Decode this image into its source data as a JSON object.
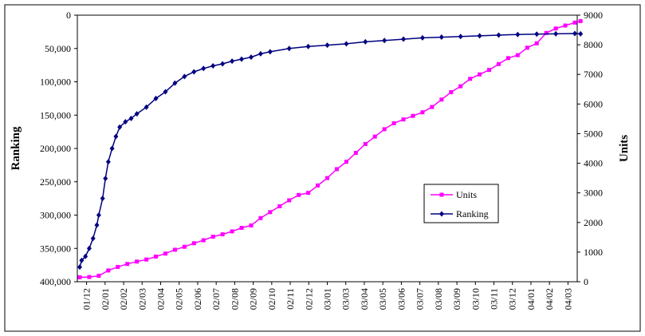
{
  "chart_data": {
    "type": "line",
    "x_categories": [
      "01/12",
      "02/01",
      "02/02",
      "02/03",
      "02/04",
      "02/05",
      "02/06",
      "02/07",
      "02/08",
      "02/09",
      "02/10",
      "02/11",
      "02/12",
      "03/01",
      "03/03",
      "03/04",
      "03/05",
      "03/06",
      "03/07",
      "03/08",
      "03/09",
      "03/10",
      "03/11",
      "03/12",
      "04/01",
      "04/02",
      "04/03"
    ],
    "left_axis": {
      "label": "Ranking",
      "min": 0,
      "max": 400000,
      "inverted": true,
      "ticks": [
        "0",
        "50,000",
        "100,000",
        "150,000",
        "200,000",
        "250,000",
        "300,000",
        "350,000",
        "400,000"
      ]
    },
    "right_axis": {
      "label": "Units",
      "min": 0,
      "max": 9000,
      "ticks": [
        "0",
        "1000",
        "2000",
        "3000",
        "4000",
        "5000",
        "6000",
        "7000",
        "8000",
        "9000"
      ]
    },
    "legend": {
      "position": "inside-right",
      "entries": [
        "Units",
        "Ranking"
      ]
    },
    "series": [
      {
        "name": "Units",
        "axis": "right",
        "color": "#FF00FF",
        "marker": "square",
        "x": [
          0,
          0.5,
          1,
          1.5,
          2,
          2.5,
          3,
          3.5,
          4,
          4.5,
          5,
          5.5,
          6,
          6.5,
          7,
          7.5,
          8,
          8.5,
          9,
          9.5,
          10,
          10.5,
          11,
          11.5,
          12,
          12.5,
          13,
          13.5,
          14,
          14.5,
          15,
          15.5,
          16,
          16.5,
          17,
          17.5,
          18,
          18.5,
          19,
          19.5,
          20,
          20.5,
          21,
          21.5,
          22,
          22.5,
          23,
          23.5,
          24,
          24.5,
          25,
          25.5,
          26,
          26.3
        ],
        "values": [
          150,
          160,
          200,
          380,
          500,
          600,
          680,
          750,
          850,
          950,
          1080,
          1180,
          1300,
          1400,
          1520,
          1600,
          1700,
          1820,
          1900,
          2150,
          2350,
          2550,
          2750,
          2930,
          3000,
          3250,
          3500,
          3800,
          4050,
          4350,
          4650,
          4900,
          5150,
          5350,
          5480,
          5600,
          5720,
          5900,
          6150,
          6400,
          6600,
          6850,
          7000,
          7150,
          7350,
          7550,
          7650,
          7900,
          8050,
          8400,
          8550,
          8650,
          8750,
          8800
        ]
      },
      {
        "name": "Ranking",
        "axis": "left",
        "color": "#000080",
        "marker": "diamond",
        "x": [
          0,
          0.1,
          0.3,
          0.5,
          0.7,
          0.9,
          1.0,
          1.2,
          1.35,
          1.5,
          1.7,
          1.9,
          2.1,
          2.4,
          2.7,
          3.0,
          3.5,
          4.0,
          4.5,
          5.0,
          5.5,
          6.0,
          6.5,
          7.0,
          7.5,
          8.0,
          8.5,
          9.0,
          9.5,
          10.0,
          11,
          12,
          13,
          14,
          15,
          16,
          17,
          18,
          19,
          20,
          21,
          22,
          23,
          24,
          25,
          26,
          26.3
        ],
        "values": [
          378000,
          368000,
          362000,
          350000,
          335000,
          315000,
          300000,
          275000,
          245000,
          220000,
          200000,
          182000,
          168000,
          160000,
          155000,
          148000,
          138000,
          125000,
          115000,
          102000,
          92000,
          85000,
          80000,
          76000,
          73000,
          69000,
          66000,
          63000,
          58000,
          55000,
          50000,
          47000,
          45000,
          43000,
          40000,
          38000,
          36000,
          34000,
          33000,
          32000,
          31000,
          30000,
          29000,
          28500,
          28000,
          27500,
          28000
        ]
      }
    ]
  }
}
